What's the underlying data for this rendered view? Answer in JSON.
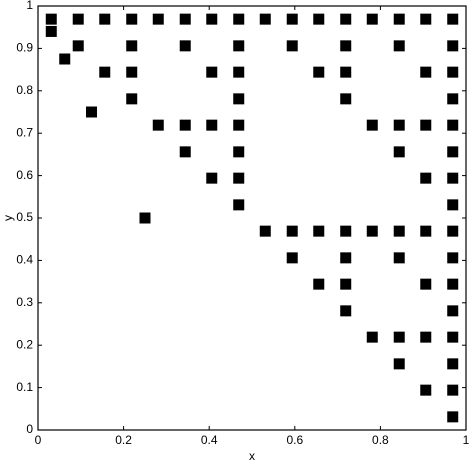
{
  "chart_data": {
    "type": "scatter",
    "xlabel": "x",
    "ylabel": "y",
    "x": [
      0.031,
      0.094,
      0.094,
      0.156,
      0.156,
      0.219,
      0.219,
      0.219,
      0.219,
      0.281,
      0.281,
      0.344,
      0.344,
      0.344,
      0.344,
      0.406,
      0.406,
      0.406,
      0.406,
      0.469,
      0.469,
      0.469,
      0.469,
      0.469,
      0.469,
      0.469,
      0.469,
      0.531,
      0.531,
      0.594,
      0.594,
      0.594,
      0.594,
      0.656,
      0.656,
      0.656,
      0.656,
      0.719,
      0.719,
      0.719,
      0.719,
      0.719,
      0.719,
      0.719,
      0.719,
      0.781,
      0.781,
      0.781,
      0.781,
      0.844,
      0.844,
      0.844,
      0.844,
      0.844,
      0.844,
      0.844,
      0.844,
      0.906,
      0.906,
      0.906,
      0.906,
      0.906,
      0.906,
      0.906,
      0.906,
      0.969,
      0.969,
      0.969,
      0.969,
      0.969,
      0.969,
      0.969,
      0.969,
      0.969,
      0.969,
      0.969,
      0.969,
      0.969,
      0.969,
      0.969,
      0.969,
      0.25,
      0.125,
      0.0625,
      0.031
    ],
    "y": [
      0.969,
      0.906,
      0.969,
      0.844,
      0.969,
      0.781,
      0.844,
      0.906,
      0.969,
      0.719,
      0.969,
      0.656,
      0.719,
      0.906,
      0.969,
      0.594,
      0.719,
      0.844,
      0.969,
      0.531,
      0.594,
      0.656,
      0.719,
      0.781,
      0.844,
      0.906,
      0.969,
      0.469,
      0.969,
      0.406,
      0.469,
      0.906,
      0.969,
      0.344,
      0.469,
      0.844,
      0.969,
      0.281,
      0.344,
      0.406,
      0.469,
      0.781,
      0.844,
      0.906,
      0.969,
      0.219,
      0.469,
      0.719,
      0.969,
      0.156,
      0.219,
      0.406,
      0.469,
      0.656,
      0.719,
      0.906,
      0.969,
      0.094,
      0.219,
      0.344,
      0.469,
      0.594,
      0.719,
      0.844,
      0.969,
      0.031,
      0.094,
      0.156,
      0.219,
      0.281,
      0.344,
      0.406,
      0.469,
      0.531,
      0.594,
      0.656,
      0.719,
      0.781,
      0.844,
      0.906,
      0.969,
      0.5,
      0.75,
      0.875,
      0.94
    ],
    "color": "#000000",
    "xlim": [
      0,
      1
    ],
    "xticks": [
      0,
      0.2,
      0.4,
      0.6,
      0.8,
      1
    ],
    "ylim": [
      0,
      1
    ],
    "yticks": [
      0,
      0.1,
      0.2,
      0.3,
      0.4,
      0.5,
      0.6,
      0.7,
      0.8,
      0.9,
      1
    ],
    "grid": false
  }
}
